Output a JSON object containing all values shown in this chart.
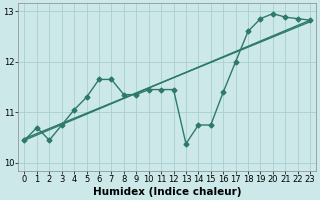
{
  "title": "",
  "xlabel": "Humidex (Indice chaleur)",
  "ylabel": "",
  "bg_color": "#cce8e8",
  "grid_color": "#aad0d0",
  "line_color": "#2d7a6a",
  "xlim": [
    -0.5,
    23.5
  ],
  "ylim": [
    9.85,
    13.15
  ],
  "yticks": [
    10,
    11,
    12,
    13
  ],
  "xticks": [
    0,
    1,
    2,
    3,
    4,
    5,
    6,
    7,
    8,
    9,
    10,
    11,
    12,
    13,
    14,
    15,
    16,
    17,
    18,
    19,
    20,
    21,
    22,
    23
  ],
  "line1_x": [
    0,
    1,
    2,
    3,
    4,
    5,
    6,
    7,
    8,
    9,
    10,
    11,
    12,
    13,
    14,
    15,
    16,
    17,
    18,
    19,
    20,
    21,
    22,
    23
  ],
  "line1_y": [
    10.45,
    10.7,
    10.45,
    10.75,
    11.05,
    11.3,
    11.65,
    11.65,
    11.35,
    11.35,
    11.45,
    11.45,
    11.45,
    10.38,
    10.75,
    10.75,
    11.4,
    12.0,
    12.6,
    12.85,
    12.95,
    12.88,
    12.85,
    12.82
  ],
  "trend1_x": [
    0,
    23
  ],
  "trend1_y": [
    10.45,
    12.82
  ],
  "trend2_x": [
    0,
    23
  ],
  "trend2_y": [
    10.48,
    12.79
  ],
  "trend3_x": [
    0,
    23
  ],
  "trend3_y": [
    10.52,
    12.76
  ],
  "marker": "D",
  "markersize": 2.5,
  "linewidth": 1.0,
  "tick_fontsize": 6.0,
  "xlabel_fontsize": 7.5,
  "xlabel_fontweight": "bold"
}
